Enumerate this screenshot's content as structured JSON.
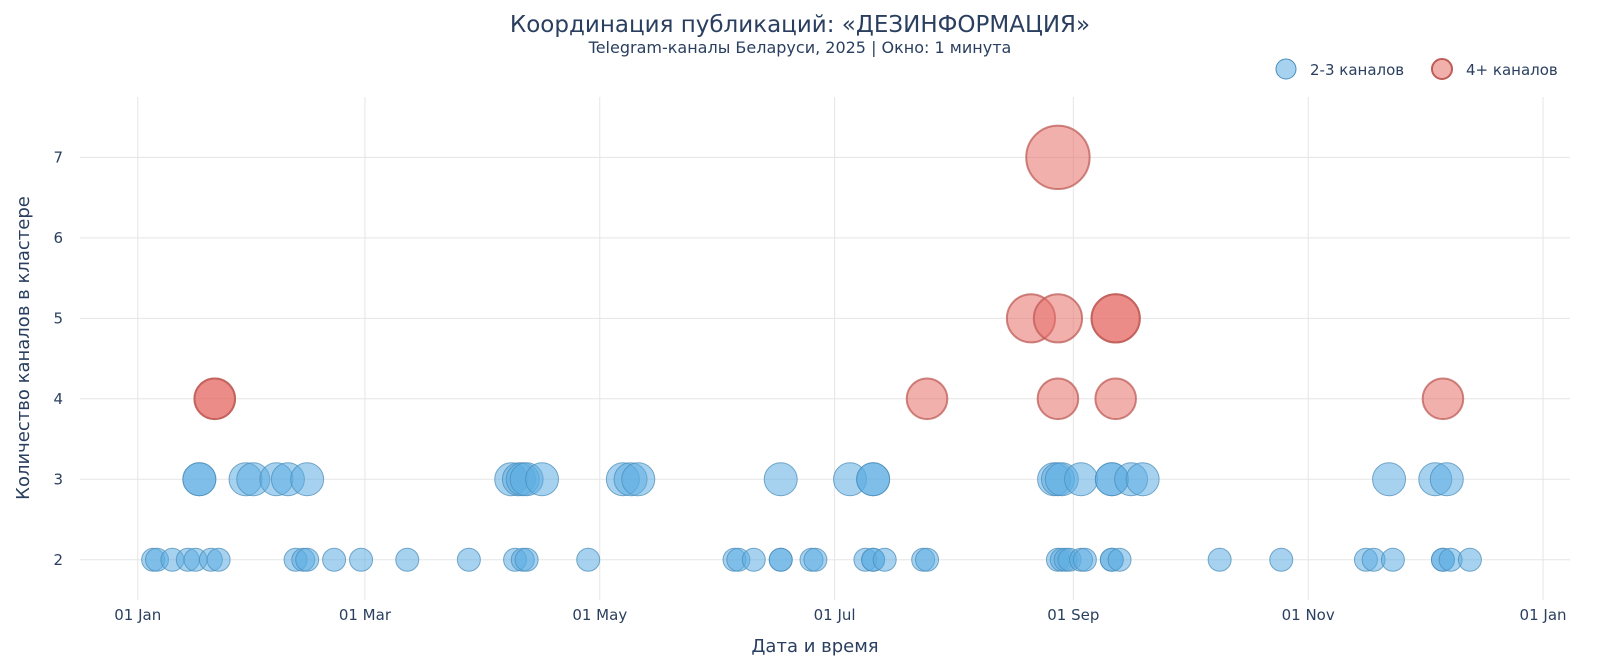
{
  "chart_data": {
    "type": "scatter",
    "title": "Координация публикаций: «ДЕЗИНФОРМАЦИЯ»",
    "subtitle": "Telegram-каналы Беларуси, 2025 | Окно: 1 минута",
    "xlabel": "Дата и время",
    "ylabel": "Количество каналов в кластере",
    "x_ticks": [
      "2025-01-01",
      "2025-03-01",
      "2025-05-01",
      "2025-07-01",
      "2025-09-01",
      "2025-11-01",
      "2026-01-01"
    ],
    "x_tick_labels": [
      "01 Jan",
      "01 Mar",
      "01 May",
      "01 Jul",
      "01 Sep",
      "01 Nov",
      "01 Jan"
    ],
    "xlim": [
      "2024-12-17",
      "2026-01-08"
    ],
    "y_ticks": [
      2,
      3,
      4,
      5,
      6,
      7
    ],
    "ylim": [
      1.5,
      7.75
    ],
    "grid": true,
    "legend_position": "top-right",
    "series": [
      {
        "name": "2-3 каналов",
        "color": "#5dade2",
        "points": [
          {
            "x": "2025-01-05",
            "y": 2
          },
          {
            "x": "2025-01-06",
            "y": 2
          },
          {
            "x": "2025-01-10",
            "y": 2
          },
          {
            "x": "2025-01-14",
            "y": 2
          },
          {
            "x": "2025-01-16",
            "y": 2
          },
          {
            "x": "2025-01-17",
            "y": 3
          },
          {
            "x": "2025-01-17",
            "y": 3
          },
          {
            "x": "2025-01-20",
            "y": 2
          },
          {
            "x": "2025-01-22",
            "y": 2
          },
          {
            "x": "2025-01-29",
            "y": 3
          },
          {
            "x": "2025-01-31",
            "y": 3
          },
          {
            "x": "2025-02-06",
            "y": 3
          },
          {
            "x": "2025-02-09",
            "y": 3
          },
          {
            "x": "2025-02-11",
            "y": 2
          },
          {
            "x": "2025-02-13",
            "y": 2
          },
          {
            "x": "2025-02-14",
            "y": 2
          },
          {
            "x": "2025-02-14",
            "y": 3
          },
          {
            "x": "2025-02-21",
            "y": 2
          },
          {
            "x": "2025-02-28",
            "y": 2
          },
          {
            "x": "2025-03-12",
            "y": 2
          },
          {
            "x": "2025-03-28",
            "y": 2
          },
          {
            "x": "2025-04-08",
            "y": 3
          },
          {
            "x": "2025-04-09",
            "y": 2
          },
          {
            "x": "2025-04-10",
            "y": 3
          },
          {
            "x": "2025-04-11",
            "y": 3
          },
          {
            "x": "2025-04-11",
            "y": 2
          },
          {
            "x": "2025-04-12",
            "y": 2
          },
          {
            "x": "2025-04-12",
            "y": 3
          },
          {
            "x": "2025-04-16",
            "y": 3
          },
          {
            "x": "2025-04-28",
            "y": 2
          },
          {
            "x": "2025-05-07",
            "y": 3
          },
          {
            "x": "2025-05-09",
            "y": 3
          },
          {
            "x": "2025-05-11",
            "y": 3
          },
          {
            "x": "2025-06-05",
            "y": 2
          },
          {
            "x": "2025-06-06",
            "y": 2
          },
          {
            "x": "2025-06-10",
            "y": 2
          },
          {
            "x": "2025-06-17",
            "y": 2
          },
          {
            "x": "2025-06-17",
            "y": 2
          },
          {
            "x": "2025-06-17",
            "y": 3
          },
          {
            "x": "2025-06-25",
            "y": 2
          },
          {
            "x": "2025-06-26",
            "y": 2
          },
          {
            "x": "2025-07-05",
            "y": 3
          },
          {
            "x": "2025-07-09",
            "y": 2
          },
          {
            "x": "2025-07-11",
            "y": 2
          },
          {
            "x": "2025-07-11",
            "y": 3
          },
          {
            "x": "2025-07-11",
            "y": 3
          },
          {
            "x": "2025-07-11",
            "y": 2
          },
          {
            "x": "2025-07-14",
            "y": 2
          },
          {
            "x": "2025-07-24",
            "y": 2
          },
          {
            "x": "2025-07-25",
            "y": 2
          },
          {
            "x": "2025-08-27",
            "y": 3
          },
          {
            "x": "2025-08-28",
            "y": 2
          },
          {
            "x": "2025-08-28",
            "y": 3
          },
          {
            "x": "2025-08-29",
            "y": 2
          },
          {
            "x": "2025-08-29",
            "y": 3
          },
          {
            "x": "2025-08-30",
            "y": 2
          },
          {
            "x": "2025-08-31",
            "y": 2
          },
          {
            "x": "2025-09-03",
            "y": 2
          },
          {
            "x": "2025-09-03",
            "y": 3
          },
          {
            "x": "2025-09-04",
            "y": 2
          },
          {
            "x": "2025-09-11",
            "y": 2
          },
          {
            "x": "2025-09-11",
            "y": 3
          },
          {
            "x": "2025-09-11",
            "y": 3
          },
          {
            "x": "2025-09-11",
            "y": 2
          },
          {
            "x": "2025-09-13",
            "y": 2
          },
          {
            "x": "2025-09-16",
            "y": 3
          },
          {
            "x": "2025-09-19",
            "y": 3
          },
          {
            "x": "2025-10-09",
            "y": 2
          },
          {
            "x": "2025-10-25",
            "y": 2
          },
          {
            "x": "2025-11-16",
            "y": 2
          },
          {
            "x": "2025-11-18",
            "y": 2
          },
          {
            "x": "2025-11-22",
            "y": 3
          },
          {
            "x": "2025-11-23",
            "y": 2
          },
          {
            "x": "2025-12-04",
            "y": 3
          },
          {
            "x": "2025-12-06",
            "y": 2
          },
          {
            "x": "2025-12-06",
            "y": 2
          },
          {
            "x": "2025-12-07",
            "y": 3
          },
          {
            "x": "2025-12-08",
            "y": 2
          },
          {
            "x": "2025-12-13",
            "y": 2
          }
        ]
      },
      {
        "name": "4+ каналов",
        "color": "#e8706a",
        "points": [
          {
            "x": "2025-01-21",
            "y": 4
          },
          {
            "x": "2025-01-21",
            "y": 4
          },
          {
            "x": "2025-07-25",
            "y": 4
          },
          {
            "x": "2025-08-21",
            "y": 5
          },
          {
            "x": "2025-08-28",
            "y": 5
          },
          {
            "x": "2025-08-28",
            "y": 4
          },
          {
            "x": "2025-08-28",
            "y": 7
          },
          {
            "x": "2025-09-12",
            "y": 5
          },
          {
            "x": "2025-09-12",
            "y": 5
          },
          {
            "x": "2025-09-12",
            "y": 4
          },
          {
            "x": "2025-12-06",
            "y": 4
          }
        ]
      }
    ]
  }
}
